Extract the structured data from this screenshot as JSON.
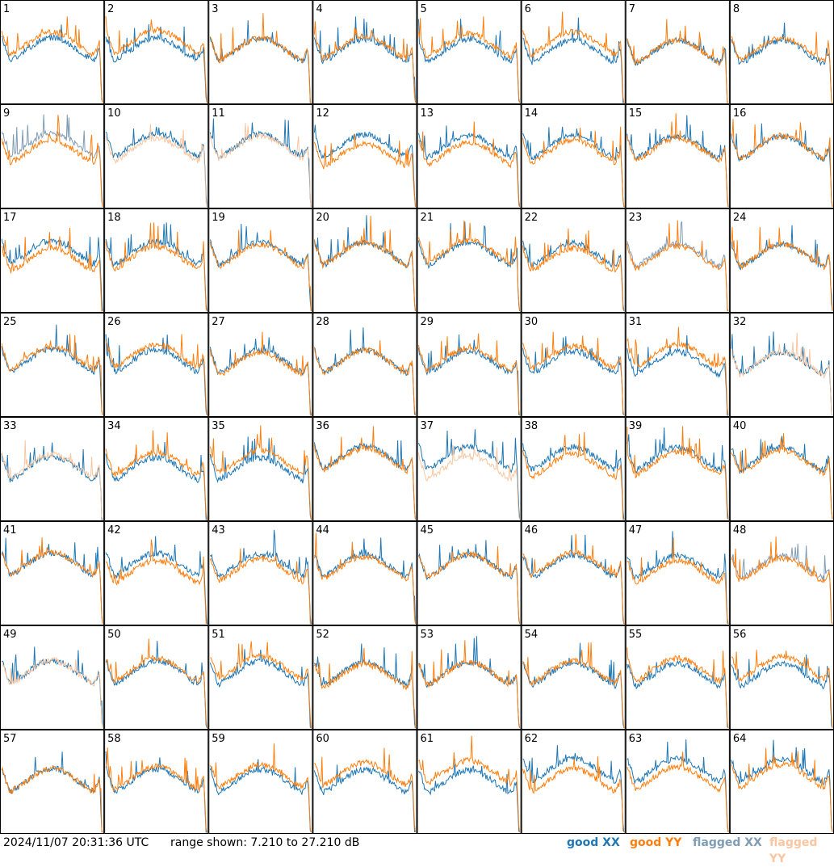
{
  "chart_data": {
    "type": "line",
    "layout": "grid",
    "rows": 8,
    "cols": 8,
    "tiles": [
      "1",
      "2",
      "3",
      "4",
      "5",
      "6",
      "7",
      "8",
      "9",
      "10",
      "11",
      "12",
      "13",
      "14",
      "15",
      "16",
      "17",
      "18",
      "19",
      "20",
      "21",
      "22",
      "23",
      "24",
      "25",
      "26",
      "27",
      "28",
      "29",
      "30",
      "31",
      "32",
      "33",
      "34",
      "35",
      "36",
      "37",
      "38",
      "39",
      "40",
      "41",
      "42",
      "43",
      "44",
      "45",
      "46",
      "47",
      "48",
      "49",
      "50",
      "51",
      "52",
      "53",
      "54",
      "55",
      "56",
      "57",
      "58",
      "59",
      "60",
      "61",
      "62",
      "63",
      "64"
    ],
    "series": [
      {
        "name": "good XX",
        "color": "#1f77b4"
      },
      {
        "name": "good YY",
        "color": "#ff7f0e"
      },
      {
        "name": "flagged XX",
        "color": "#7f9cb5"
      },
      {
        "name": "flagged YY",
        "color": "#f9c6a1"
      }
    ],
    "ylim": [
      7.21,
      27.21
    ],
    "flagged_xx_tiles": [
      "9",
      "23",
      "48"
    ],
    "flagged_yy_tiles": [
      "10",
      "11",
      "32",
      "33",
      "37",
      "49"
    ]
  },
  "footer": {
    "timestamp": "2024/11/07 20:31:36 UTC",
    "range": "range shown: 7.210 to 27.210 dB",
    "legend": [
      "good XX",
      "good YY",
      "flagged XX",
      "flagged YY"
    ]
  }
}
